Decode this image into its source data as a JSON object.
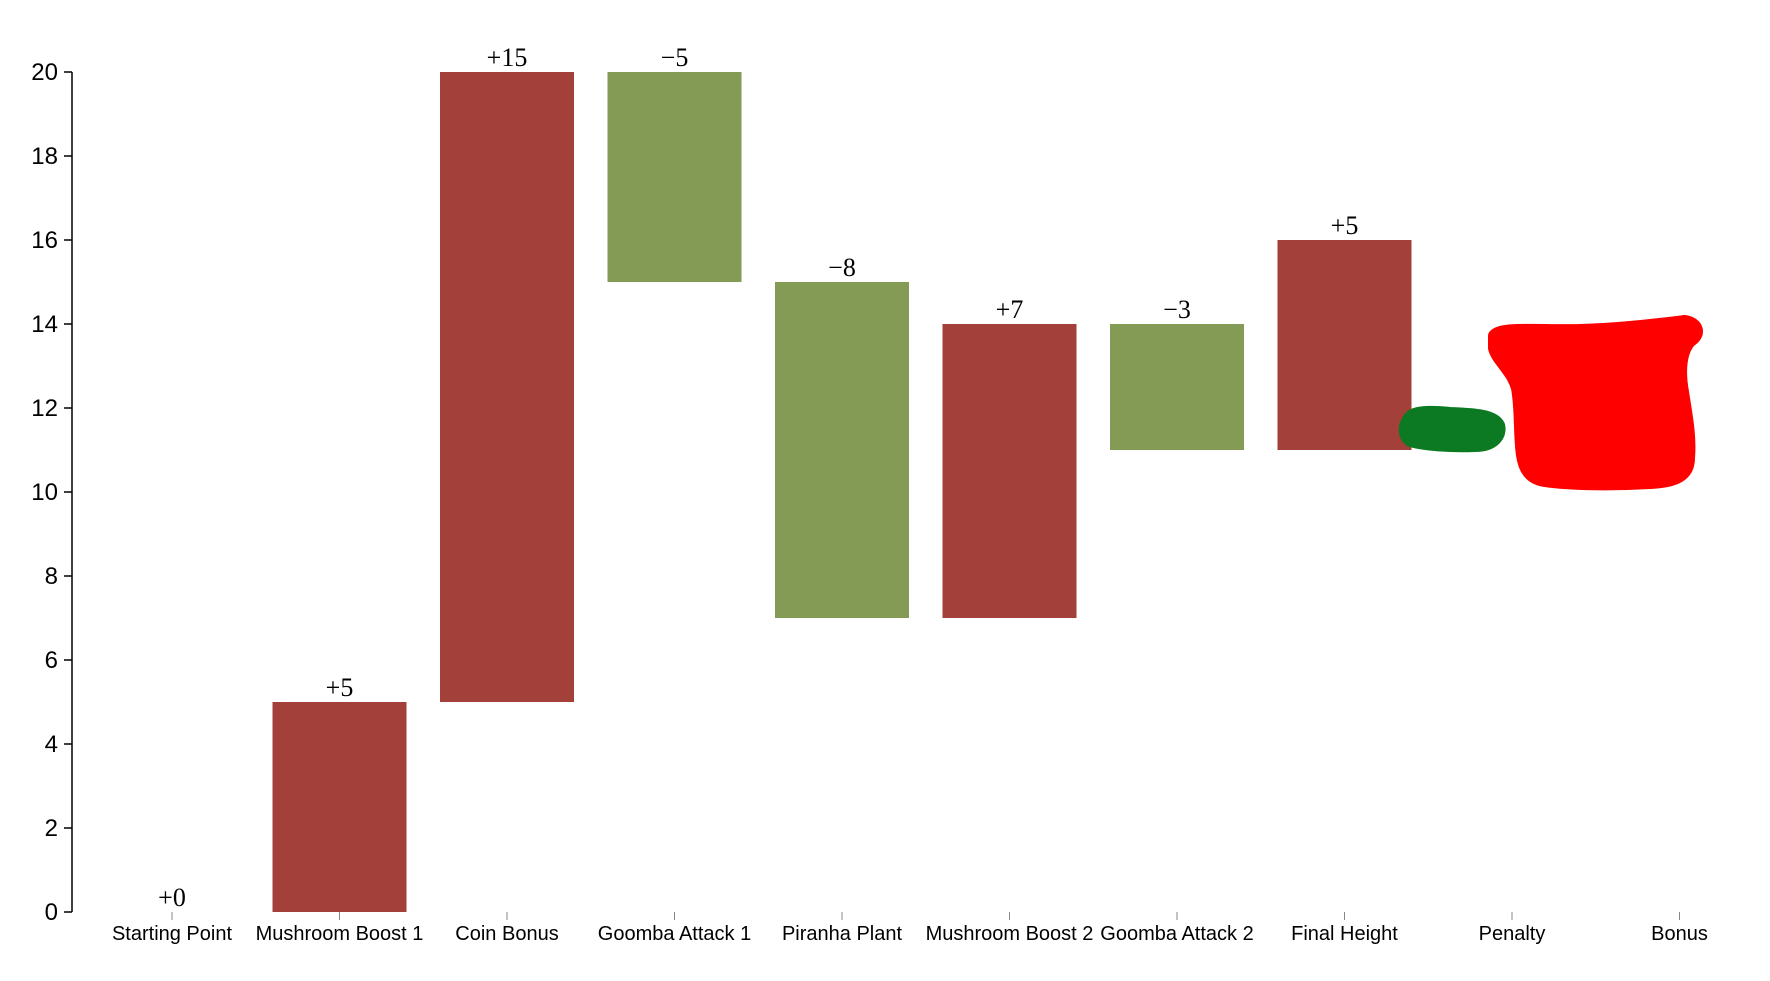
{
  "chart_data": {
    "type": "bar",
    "subtype": "waterfall",
    "title": "",
    "xlabel": "",
    "ylabel": "",
    "ylim": [
      0,
      20
    ],
    "yticks": [
      0,
      2,
      4,
      6,
      8,
      10,
      12,
      14,
      16,
      18,
      20
    ],
    "grid": false,
    "categories": [
      "Starting Point",
      "Mushroom Boost 1",
      "Coin Bonus",
      "Goomba Attack 1",
      "Piranha Plant",
      "Mushroom Boost 2",
      "Goomba Attack 2",
      "Final Height",
      "Penalty",
      "Bonus"
    ],
    "bars": [
      {
        "start": 0,
        "end": 0,
        "label": "+0",
        "color": "#a3403a"
      },
      {
        "start": 0,
        "end": 5,
        "label": "+5",
        "color": "#a3403a"
      },
      {
        "start": 5,
        "end": 20,
        "label": "+15",
        "color": "#a3403a"
      },
      {
        "start": 20,
        "end": 15,
        "label": "−5",
        "color": "#839b54"
      },
      {
        "start": 15,
        "end": 7,
        "label": "−8",
        "color": "#839b54"
      },
      {
        "start": 7,
        "end": 14,
        "label": "+7",
        "color": "#a3403a"
      },
      {
        "start": 14,
        "end": 11,
        "label": "−3",
        "color": "#839b54"
      },
      {
        "start": 11,
        "end": 16,
        "label": "+5",
        "color": "#a3403a"
      }
    ],
    "annotations": [
      {
        "category": "Penalty",
        "kind": "hand-drawn scribble",
        "color": "#0b7a23",
        "approx_range": [
          11,
          12
        ]
      },
      {
        "category": "Bonus",
        "kind": "hand-drawn scribble",
        "color": "#ff0000",
        "approx_range": [
          10.5,
          14
        ]
      }
    ],
    "colors": {
      "increase": "#a3403a",
      "decrease": "#839b54",
      "axis": "#000000"
    }
  }
}
